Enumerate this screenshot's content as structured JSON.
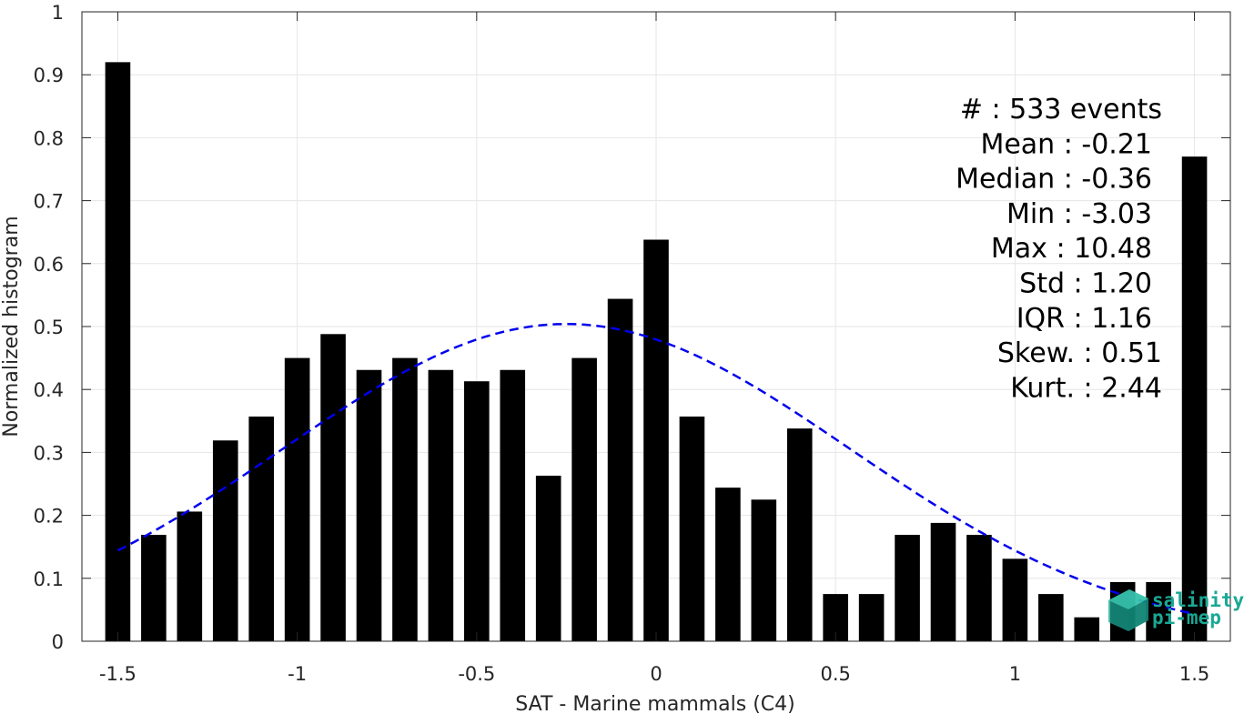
{
  "chart_data": {
    "type": "bar",
    "xlabel": "SAT - Marine mammals (C4)",
    "ylabel": "Normalized histogram",
    "xlim": [
      -1.6,
      1.6
    ],
    "ylim": [
      0,
      1
    ],
    "grid": true,
    "x_ticks": [
      -1.5,
      -1,
      -0.5,
      0,
      0.5,
      1,
      1.5
    ],
    "x_tick_labels": [
      "-1.5",
      "-1",
      "-0.5",
      "0",
      "0.5",
      "1",
      "1.5"
    ],
    "y_ticks": [
      0,
      0.1,
      0.2,
      0.3,
      0.4,
      0.5,
      0.6,
      0.7,
      0.8,
      0.9,
      1
    ],
    "y_tick_labels": [
      "0",
      "0.1",
      "0.2",
      "0.3",
      "0.4",
      "0.5",
      "0.6",
      "0.7",
      "0.8",
      "0.9",
      "1"
    ],
    "bar_color": "#000000",
    "bar_width": 0.07,
    "bars": {
      "x": [
        -1.5,
        -1.4,
        -1.3,
        -1.2,
        -1.1,
        -1.0,
        -0.9,
        -0.8,
        -0.7,
        -0.6,
        -0.5,
        -0.4,
        -0.3,
        -0.2,
        -0.1,
        0.0,
        0.1,
        0.2,
        0.3,
        0.4,
        0.5,
        0.6,
        0.7,
        0.8,
        0.9,
        1.0,
        1.1,
        1.2,
        1.3,
        1.4,
        1.5
      ],
      "values": [
        0.92,
        0.169,
        0.206,
        0.319,
        0.357,
        0.45,
        0.488,
        0.431,
        0.45,
        0.431,
        0.413,
        0.431,
        0.263,
        0.45,
        0.544,
        0.638,
        0.357,
        0.244,
        0.225,
        0.338,
        0.075,
        0.075,
        0.169,
        0.188,
        0.169,
        0.131,
        0.075,
        0.038,
        0.094,
        0.094,
        0.77
      ]
    },
    "fit_curve": {
      "style": "dashed",
      "color": "#0000ee",
      "x_range": [
        -1.5,
        1.5
      ],
      "mean": -0.25,
      "std": 0.79,
      "peak": 0.504
    },
    "stats": [
      {
        "label": "#  : 533 events",
        "align": "right-wide"
      },
      {
        "label": "Mean : -0.21",
        "align": "right"
      },
      {
        "label": "Median : -0.36",
        "align": "right"
      },
      {
        "label": "Min : -3.03",
        "align": "right"
      },
      {
        "label": "Max : 10.48",
        "align": "right"
      },
      {
        "label": "Std : 1.20",
        "align": "right"
      },
      {
        "label": "IQR : 1.16",
        "align": "right"
      },
      {
        "label": "Skew. : 0.51",
        "align": "right-wide"
      },
      {
        "label": "Kurt. : 2.44",
        "align": "right-wide"
      }
    ]
  },
  "logo": {
    "line1": "salinity",
    "line2": "pi-mep",
    "color": "#19a894"
  }
}
